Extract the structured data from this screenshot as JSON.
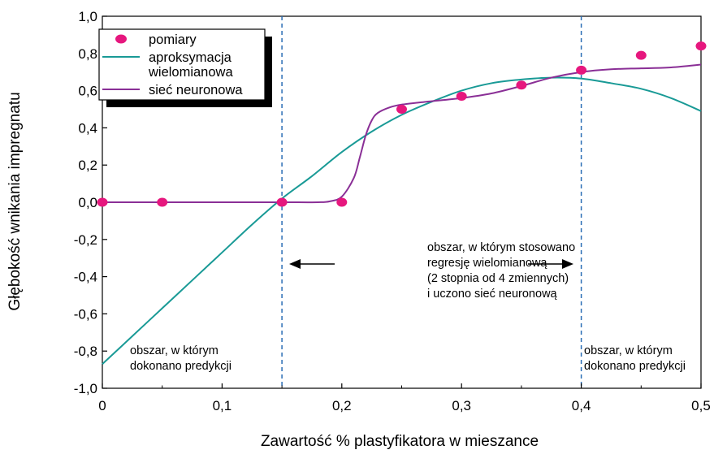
{
  "chart_data": {
    "type": "line",
    "xlabel": "Zawartość % plastyfikatora w mieszance",
    "ylabel": "Głębokość wnikania impregnatu",
    "xlim": [
      0,
      0.5
    ],
    "ylim": [
      -1.0,
      1.0
    ],
    "x_ticks": [
      "0",
      "0,1",
      "0,2",
      "0,3",
      "0,4",
      "0,5"
    ],
    "x_tick_values": [
      0,
      0.1,
      0.2,
      0.3,
      0.4,
      0.5
    ],
    "y_ticks": [
      "1,0",
      "0,8",
      "0,6",
      "0,4",
      "0,2",
      "0,0",
      "-0,2",
      "-0,4",
      "-0,6",
      "-0,8",
      "-1,0"
    ],
    "y_tick_values": [
      1.0,
      0.8,
      0.6,
      0.4,
      0.2,
      0.0,
      -0.2,
      -0.4,
      -0.6,
      -0.8,
      -1.0
    ],
    "grid": false,
    "legend_position": "top-left",
    "series": [
      {
        "name": "pomiary",
        "kind": "scatter",
        "color": "#e6177e",
        "x": [
          0,
          0.05,
          0.15,
          0.2,
          0.25,
          0.3,
          0.35,
          0.4,
          0.45,
          0.5
        ],
        "y": [
          0.0,
          0.0,
          0.0,
          0.0,
          0.5,
          0.57,
          0.63,
          0.71,
          0.79,
          0.84
        ]
      },
      {
        "name": "aproksymacja\nwielomianowa",
        "kind": "line",
        "color": "#199a96",
        "x": [
          0,
          0.025,
          0.05,
          0.075,
          0.1,
          0.125,
          0.15,
          0.175,
          0.2,
          0.225,
          0.25,
          0.275,
          0.3,
          0.325,
          0.35,
          0.375,
          0.4,
          0.425,
          0.45,
          0.475,
          0.5
        ],
        "y": [
          -0.87,
          -0.72,
          -0.57,
          -0.42,
          -0.27,
          -0.12,
          0.02,
          0.14,
          0.27,
          0.38,
          0.47,
          0.54,
          0.6,
          0.64,
          0.66,
          0.67,
          0.665,
          0.64,
          0.61,
          0.56,
          0.49
        ]
      },
      {
        "name": "sieć neuronowa",
        "kind": "line",
        "color": "#8a2f96",
        "x": [
          0,
          0.05,
          0.1,
          0.15,
          0.18,
          0.19,
          0.2,
          0.21,
          0.215,
          0.22,
          0.225,
          0.23,
          0.24,
          0.25,
          0.27,
          0.3,
          0.325,
          0.35,
          0.375,
          0.4,
          0.425,
          0.45,
          0.475,
          0.5
        ],
        "y": [
          0.0,
          0.0,
          0.0,
          0.0,
          0.0,
          0.005,
          0.03,
          0.13,
          0.24,
          0.36,
          0.44,
          0.48,
          0.51,
          0.525,
          0.54,
          0.56,
          0.585,
          0.625,
          0.67,
          0.7,
          0.715,
          0.72,
          0.725,
          0.74
        ]
      }
    ],
    "vertical_lines": [
      {
        "x": 0.15,
        "color": "#2a6db5",
        "style": "dashed"
      },
      {
        "x": 0.4,
        "color": "#2a6db5",
        "style": "dashed"
      }
    ],
    "annotations": {
      "center": [
        "obszar, w którym stosowano",
        "regresję wielomianową",
        "(2 stopnia od 4 zmiennych)",
        "i uczono sieć neuronową"
      ],
      "left": [
        "obszar, w którym",
        "dokonano predykcji"
      ],
      "right": [
        "obszar, w którym",
        "dokonano predykcji"
      ]
    }
  }
}
